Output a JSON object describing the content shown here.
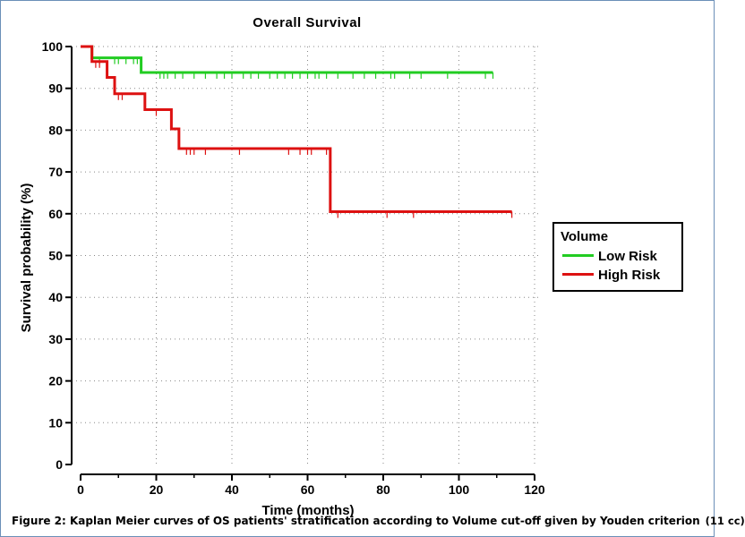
{
  "chart_data": {
    "type": "line",
    "title": "Overall Survival",
    "xlabel": "Time (months)",
    "ylabel": "Survival probability (%)",
    "xlim": [
      0,
      120
    ],
    "ylim": [
      0,
      100
    ],
    "xticks": [
      0,
      20,
      40,
      60,
      80,
      100,
      120
    ],
    "yticks": [
      0,
      10,
      20,
      30,
      40,
      50,
      60,
      70,
      80,
      90,
      100
    ],
    "grid": "dotted",
    "legend": {
      "title": "Volume",
      "placement": "right",
      "entries": [
        "Low Risk",
        "High Risk"
      ]
    },
    "series": [
      {
        "name": "Low Risk",
        "color": "#22cc22",
        "steps": [
          [
            0,
            100
          ],
          [
            3,
            97.3
          ],
          [
            16,
            93.8
          ],
          [
            109,
            93.8
          ]
        ],
        "censored": [
          5,
          9,
          10,
          12,
          14,
          15,
          21,
          22,
          23,
          25,
          27,
          30,
          33,
          36,
          38,
          40,
          43,
          45,
          47,
          50,
          52,
          54,
          56,
          58,
          60,
          62,
          63,
          65,
          68,
          72,
          75,
          78,
          82,
          83,
          87,
          90,
          97,
          107,
          109
        ]
      },
      {
        "name": "High Risk",
        "color": "#dd1111",
        "steps": [
          [
            0,
            100
          ],
          [
            3,
            96.4
          ],
          [
            7,
            92.6
          ],
          [
            9,
            88.7
          ],
          [
            17,
            84.9
          ],
          [
            24,
            80.3
          ],
          [
            26,
            75.6
          ],
          [
            66,
            60.5
          ],
          [
            114,
            60.5
          ]
        ],
        "censored": [
          4,
          5,
          10,
          11,
          20,
          28,
          29,
          30,
          33,
          42,
          55,
          58,
          60,
          61,
          65,
          68,
          81,
          88,
          114
        ]
      }
    ]
  },
  "caption": {
    "text": "Figure 2: Kaplan Meier curves of OS patients' stratification according to Volume cut-off given by Youden criterion",
    "units": "(11 cc)"
  }
}
